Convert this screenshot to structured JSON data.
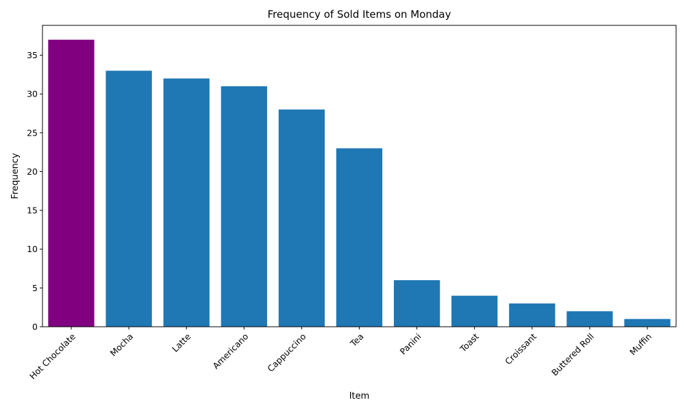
{
  "chart_data": {
    "type": "bar",
    "title": "Frequency of Sold Items on Monday",
    "xlabel": "Item",
    "ylabel": "Frequency",
    "categories": [
      "Hot Chocolate",
      "Mocha",
      "Latte",
      "Americano",
      "Cappuccino",
      "Tea",
      "Panini",
      "Toast",
      "Croissant",
      "Buttered Roll",
      "Muffin"
    ],
    "values": [
      37,
      33,
      32,
      31,
      28,
      23,
      6,
      4,
      3,
      2,
      1
    ],
    "ylim": [
      0,
      38.85
    ],
    "yticks": [
      0,
      5,
      10,
      15,
      20,
      25,
      30,
      35
    ],
    "grid": false,
    "bar_color": "#1f77b4",
    "highlight_color": "#800080",
    "highlight_category": "Hot Chocolate"
  }
}
